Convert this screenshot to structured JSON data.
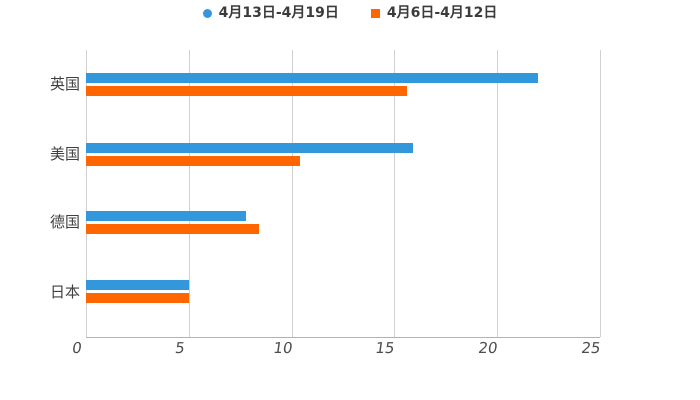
{
  "chart_data": {
    "type": "bar",
    "orientation": "horizontal",
    "title": "",
    "xlabel": "",
    "ylabel": "",
    "categories": [
      "英国",
      "美国",
      "德国",
      "日本"
    ],
    "series": [
      {
        "name": "4月13日-4月19日",
        "marker": "circle",
        "color": "#3398db",
        "values": [
          22,
          15.9,
          7.8,
          5.0
        ]
      },
      {
        "name": "4月6日-4月12日",
        "marker": "square",
        "color": "#ff6600",
        "values": [
          15.6,
          10.4,
          8.4,
          5.0
        ]
      }
    ],
    "xlim": [
      0,
      25
    ],
    "xticks": [
      "0",
      "5",
      "10",
      "15",
      "20",
      "25"
    ],
    "grid": true,
    "legend_position": "top",
    "colors": {
      "grid_line": "#d0d0d0",
      "axis_line": "#b2b2b2",
      "tick_text": "#4d4d4d",
      "category_text": "#404040",
      "legend_text": "#3b3b3b",
      "background": "#ffffff"
    }
  }
}
